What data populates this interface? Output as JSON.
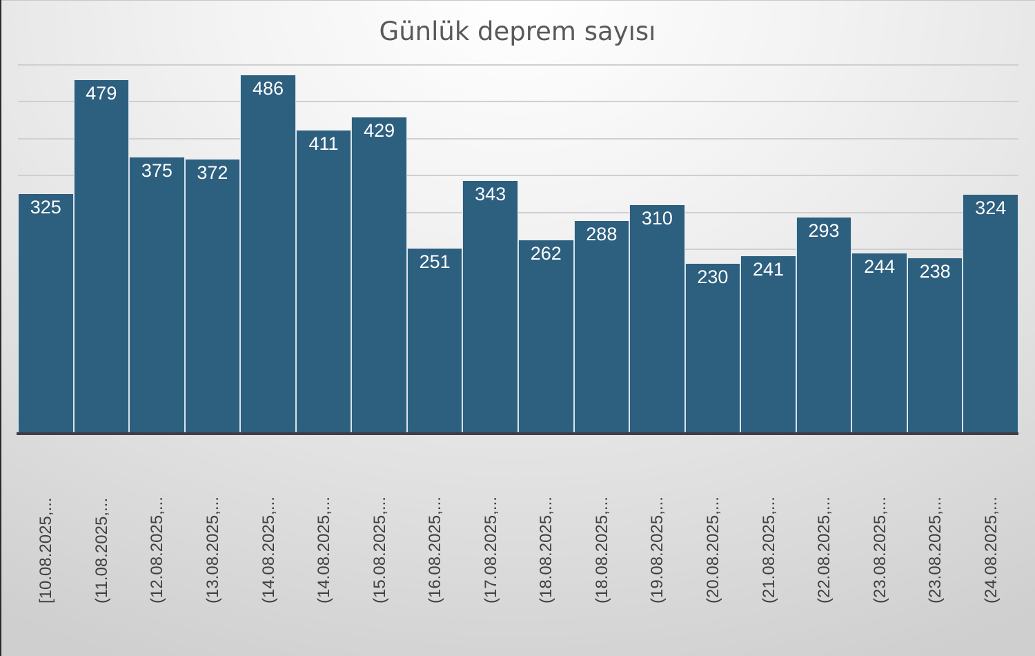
{
  "chart_data": {
    "type": "bar",
    "title": "Günlük deprem sayısı",
    "xlabel": "",
    "ylabel": "",
    "ylim": [
      0,
      500
    ],
    "grid": true,
    "gridline_step": 50,
    "legend": null,
    "bar_color": "#2d5f7f",
    "categories": [
      "[10.08.2025,...",
      "(11.08.2025,...",
      "(12.08.2025,...",
      "(13.08.2025,...",
      "(14.08.2025,...",
      "(14.08.2025,...",
      "(15.08.2025,...",
      "(16.08.2025,...",
      "(17.08.2025,...",
      "(18.08.2025,...",
      "(18.08.2025,...",
      "(19.08.2025,...",
      "(20.08.2025,...",
      "(21.08.2025,...",
      "(22.08.2025,...",
      "(23.08.2025,...",
      "(23.08.2025,...",
      "(24.08.2025,..."
    ],
    "values": [
      325,
      479,
      375,
      372,
      486,
      411,
      429,
      251,
      343,
      262,
      288,
      310,
      230,
      241,
      293,
      244,
      238,
      324
    ]
  }
}
